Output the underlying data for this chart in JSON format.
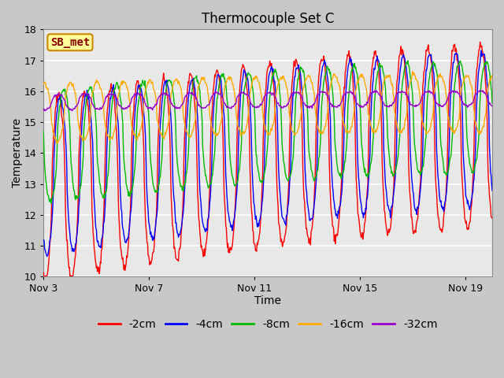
{
  "title": "Thermocouple Set C",
  "xlabel": "Time",
  "ylabel": "Temperature",
  "ylim": [
    10.0,
    18.0
  ],
  "yticks": [
    10.0,
    11.0,
    12.0,
    13.0,
    14.0,
    15.0,
    16.0,
    17.0,
    18.0
  ],
  "xtick_labels": [
    "Nov 3",
    "Nov 7",
    "Nov 11",
    "Nov 15",
    "Nov 19"
  ],
  "xtick_positions": [
    0,
    4,
    8,
    12,
    16
  ],
  "series_colors": {
    "-2cm": "#ff0000",
    "-4cm": "#0000ff",
    "-8cm": "#00bb00",
    "-16cm": "#ffaa00",
    "-32cm": "#9900cc"
  },
  "annotation_text": "SB_met",
  "annotation_bg": "#ffff99",
  "annotation_border": "#cc8800",
  "annotation_text_color": "#880000",
  "plot_bg_color": "#e8e8e8",
  "fig_bg_color": "#c8c8c8",
  "num_days": 17,
  "points_per_day": 48,
  "title_fontsize": 12,
  "legend_fontsize": 10,
  "axis_label_fontsize": 10,
  "linewidth": 1.0
}
